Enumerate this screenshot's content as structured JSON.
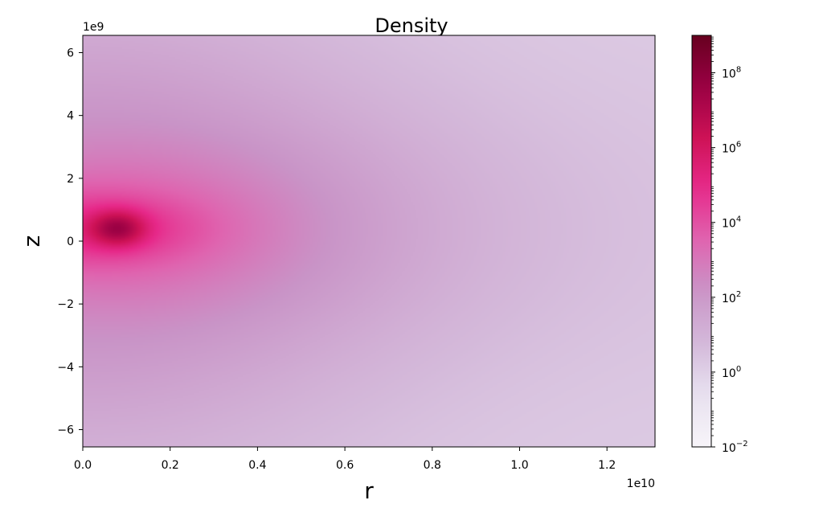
{
  "chart_data": {
    "type": "heatmap",
    "title": "Density",
    "xlabel": "r",
    "ylabel": "z",
    "x_offset_label": "1e10",
    "y_offset_label": "1e9",
    "xlim": [
      0.0,
      1.31
    ],
    "ylim": [
      -6.55,
      6.55
    ],
    "x_ticks": [
      0.0,
      0.2,
      0.4,
      0.6,
      0.8,
      1.0,
      1.2
    ],
    "x_tick_labels": [
      "0.0",
      "0.2",
      "0.4",
      "0.6",
      "0.8",
      "1.0",
      "1.2"
    ],
    "y_ticks": [
      -6,
      -4,
      -2,
      0,
      2,
      4,
      6
    ],
    "y_tick_labels": [
      "−6",
      "−4",
      "−2",
      "0",
      "2",
      "4",
      "6"
    ],
    "colorbar": {
      "scale": "log",
      "range": [
        -2,
        9
      ],
      "colormap": "PuRd",
      "major_ticks": [
        {
          "exp": -2,
          "base": "10",
          "sup": "−2"
        },
        {
          "exp": 0,
          "base": "10",
          "sup": "0"
        },
        {
          "exp": 2,
          "base": "10",
          "sup": "2"
        },
        {
          "exp": 4,
          "base": "10",
          "sup": "4"
        },
        {
          "exp": 6,
          "base": "10",
          "sup": "6"
        },
        {
          "exp": 8,
          "base": "10",
          "sup": "8"
        }
      ]
    },
    "density_peak": {
      "r": 0.08,
      "z": 0.4,
      "log_value": 5.8
    },
    "grid": false,
    "legend": "none"
  }
}
